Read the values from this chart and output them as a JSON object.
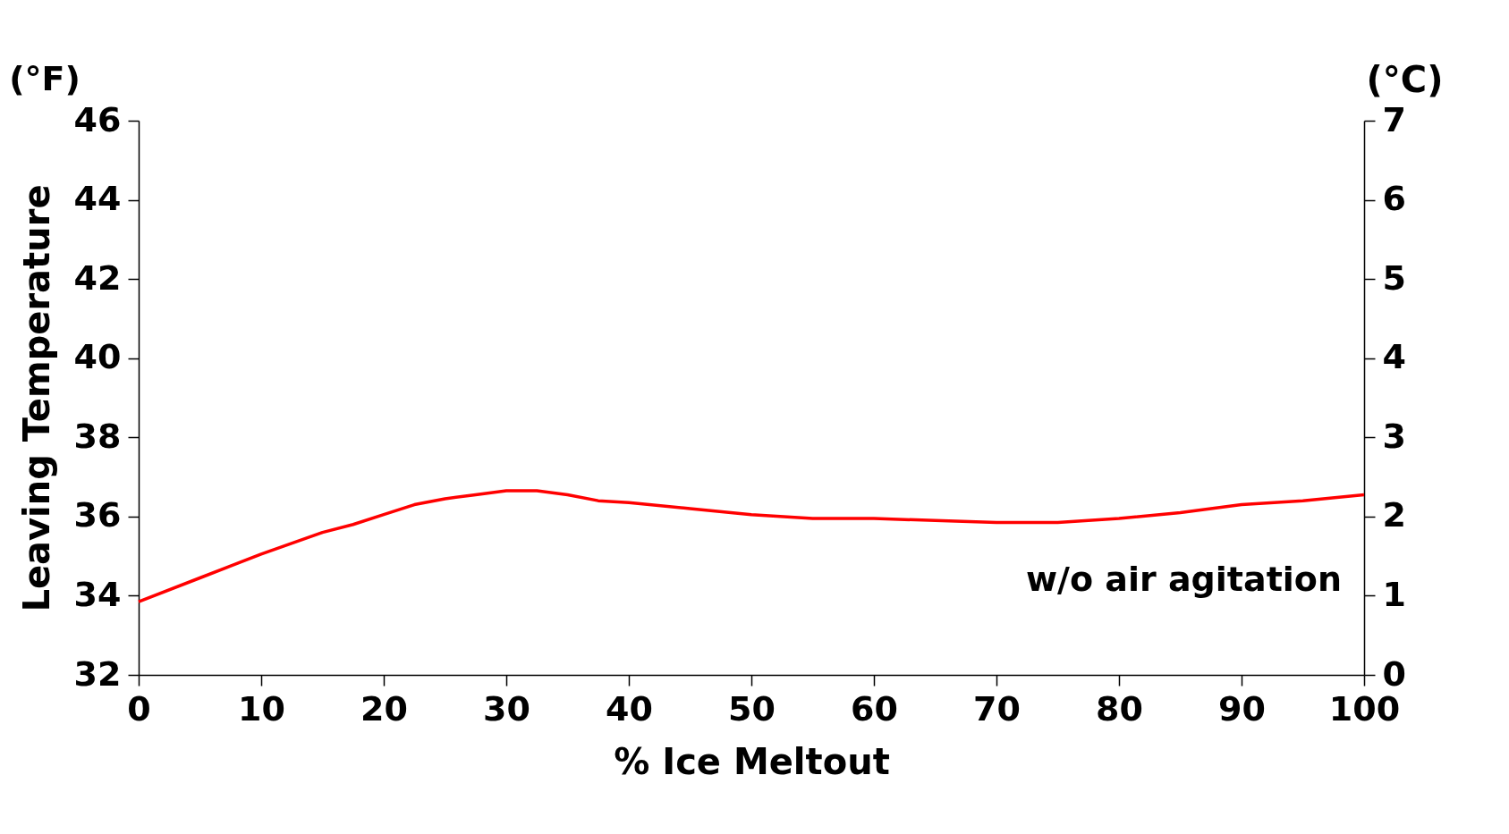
{
  "chart_data": {
    "type": "line",
    "xlabel": "% Ice Meltout",
    "ylabel": "Leaving Temperature",
    "y2label": "(°C)",
    "annotations": [
      "(°F)"
    ],
    "series": [
      {
        "name": "w/o air agitation",
        "color": "#ff0000",
        "x": [
          0,
          5,
          10,
          15,
          17.5,
          20,
          22.5,
          25,
          27.5,
          30,
          32.5,
          35,
          37.5,
          40,
          45,
          50,
          55,
          60,
          65,
          70,
          75,
          80,
          85,
          90,
          95,
          100
        ],
        "values": [
          33.85,
          34.45,
          35.05,
          35.6,
          35.8,
          36.05,
          36.3,
          36.45,
          36.55,
          36.65,
          36.65,
          36.55,
          36.4,
          36.35,
          36.2,
          36.05,
          35.95,
          35.95,
          35.9,
          35.85,
          35.85,
          35.95,
          36.1,
          36.3,
          36.4,
          36.55
        ]
      }
    ],
    "xlim": [
      0,
      100
    ],
    "xticks": [
      0,
      10,
      20,
      30,
      40,
      50,
      60,
      70,
      80,
      90,
      100
    ],
    "ylim": [
      32,
      46
    ],
    "yticks": [
      32,
      34,
      36,
      38,
      40,
      42,
      44,
      46
    ],
    "y2lim": [
      0,
      7
    ],
    "y2ticks": [
      0,
      1,
      2,
      3,
      4,
      5,
      6,
      7
    ],
    "grid": false,
    "legend": false
  }
}
